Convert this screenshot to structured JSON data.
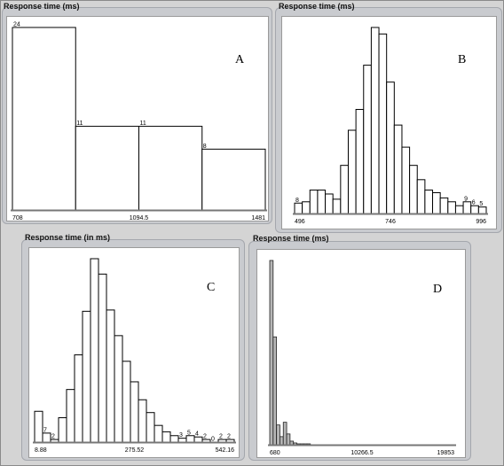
{
  "chart_data": [
    {
      "id": "A",
      "type": "bar",
      "title": "Response time (ms)",
      "panel_letter": "A",
      "values": [
        24,
        11,
        11,
        8
      ],
      "bar_labels": [
        "24",
        "11",
        "11",
        "8"
      ],
      "ymax": 24,
      "tick_labels": [
        "708",
        "1094.5",
        "1481"
      ],
      "dark": false
    },
    {
      "id": "B",
      "type": "bar",
      "title": "Response time (ms)",
      "panel_letter": "B",
      "values": [
        8,
        9,
        18,
        18,
        15,
        11,
        37,
        64,
        80,
        114,
        143,
        138,
        101,
        68,
        51,
        37,
        26,
        18,
        16,
        12,
        9,
        6,
        9,
        6,
        5
      ],
      "bar_labels": [
        "8",
        "",
        "",
        "",
        "",
        "",
        "",
        "",
        "",
        "",
        "",
        "",
        "",
        "",
        "",
        "",
        "",
        "",
        "",
        "",
        "",
        "",
        "9",
        "6",
        "5"
      ],
      "ymax": 143,
      "tick_labels": [
        "496",
        "746",
        "996"
      ],
      "dark": false
    },
    {
      "id": "C",
      "type": "bar",
      "title": "Response time (in ms)",
      "panel_letter": "C",
      "values": [
        24,
        7,
        2,
        19,
        41,
        68,
        102,
        143,
        131,
        103,
        83,
        63,
        47,
        33,
        23,
        13,
        8,
        5,
        3,
        5,
        4,
        2,
        0,
        2,
        2
      ],
      "bar_labels": [
        "",
        "7",
        "2",
        "",
        "",
        "",
        "",
        "",
        "",
        "",
        "",
        "",
        "",
        "",
        "",
        "",
        "",
        "",
        "3",
        "5",
        "4",
        "2",
        "0",
        "2",
        "2"
      ],
      "ymax": 143,
      "tick_labels": [
        "8.88",
        "275.52",
        "542.16"
      ],
      "dark": false
    },
    {
      "id": "D",
      "type": "bar",
      "title": "Response time (ms)",
      "panel_letter": "D",
      "values": [
        205,
        120,
        22,
        9,
        25,
        12,
        4,
        2,
        1,
        1,
        1,
        1
      ],
      "bar_labels": [
        "",
        "",
        "",
        "",
        "",
        "",
        "",
        "",
        "",
        "",
        "",
        ""
      ],
      "ymax": 205,
      "tick_labels": [
        "680",
        "10266.5",
        "19853"
      ],
      "dark": true
    }
  ]
}
